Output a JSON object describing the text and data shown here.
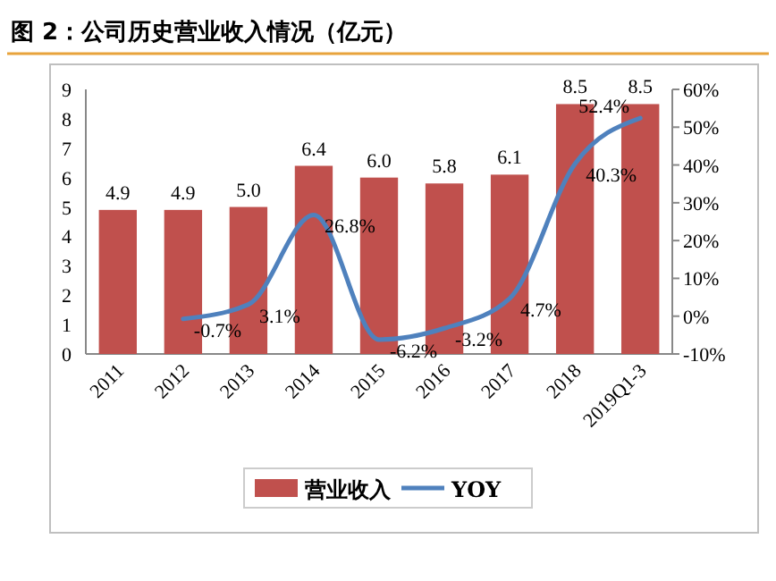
{
  "chart_data": {
    "type": "bar",
    "title": "图 2：公司历史营业收入情况（亿元）",
    "categories": [
      "2011",
      "2012",
      "2013",
      "2014",
      "2015",
      "2016",
      "2017",
      "2018",
      "2019Q1-3"
    ],
    "series": [
      {
        "name": "营业收入",
        "color": "#c0504d",
        "values": [
          4.9,
          4.9,
          5.0,
          6.4,
          6.0,
          5.8,
          6.1,
          8.5,
          8.5
        ],
        "value_labels": [
          "4.9",
          "4.9",
          "5.0",
          "6.4",
          "6.0",
          "5.8",
          "6.1",
          "8.5",
          "8.5"
        ]
      },
      {
        "name": "YOY",
        "type": "line",
        "axis": "y2",
        "color": "#4f81bd",
        "values": [
          null,
          -0.7,
          3.1,
          26.8,
          -6.2,
          -3.2,
          4.7,
          40.3,
          52.4
        ],
        "value_labels": [
          null,
          "-0.7%",
          "3.1%",
          "26.8%",
          "-6.2%",
          "-3.2%",
          "4.7%",
          "40.3%",
          "52.4%"
        ]
      }
    ],
    "ylim": [
      0,
      9
    ],
    "yticks": [
      0,
      1,
      2,
      3,
      4,
      5,
      6,
      7,
      8,
      9
    ],
    "y2lim": [
      -10,
      60
    ],
    "y2ticks": [
      {
        "value": -10,
        "label": "-10%"
      },
      {
        "value": 0,
        "label": "0%"
      },
      {
        "value": 10,
        "label": "10%"
      },
      {
        "value": 20,
        "label": "20%"
      },
      {
        "value": 30,
        "label": "30%"
      },
      {
        "value": 40,
        "label": "40%"
      },
      {
        "value": 50,
        "label": "50%"
      },
      {
        "value": 60,
        "label": "60%"
      }
    ],
    "legend": "bottom",
    "grid": false,
    "marker": "none",
    "line_style": "solid"
  }
}
